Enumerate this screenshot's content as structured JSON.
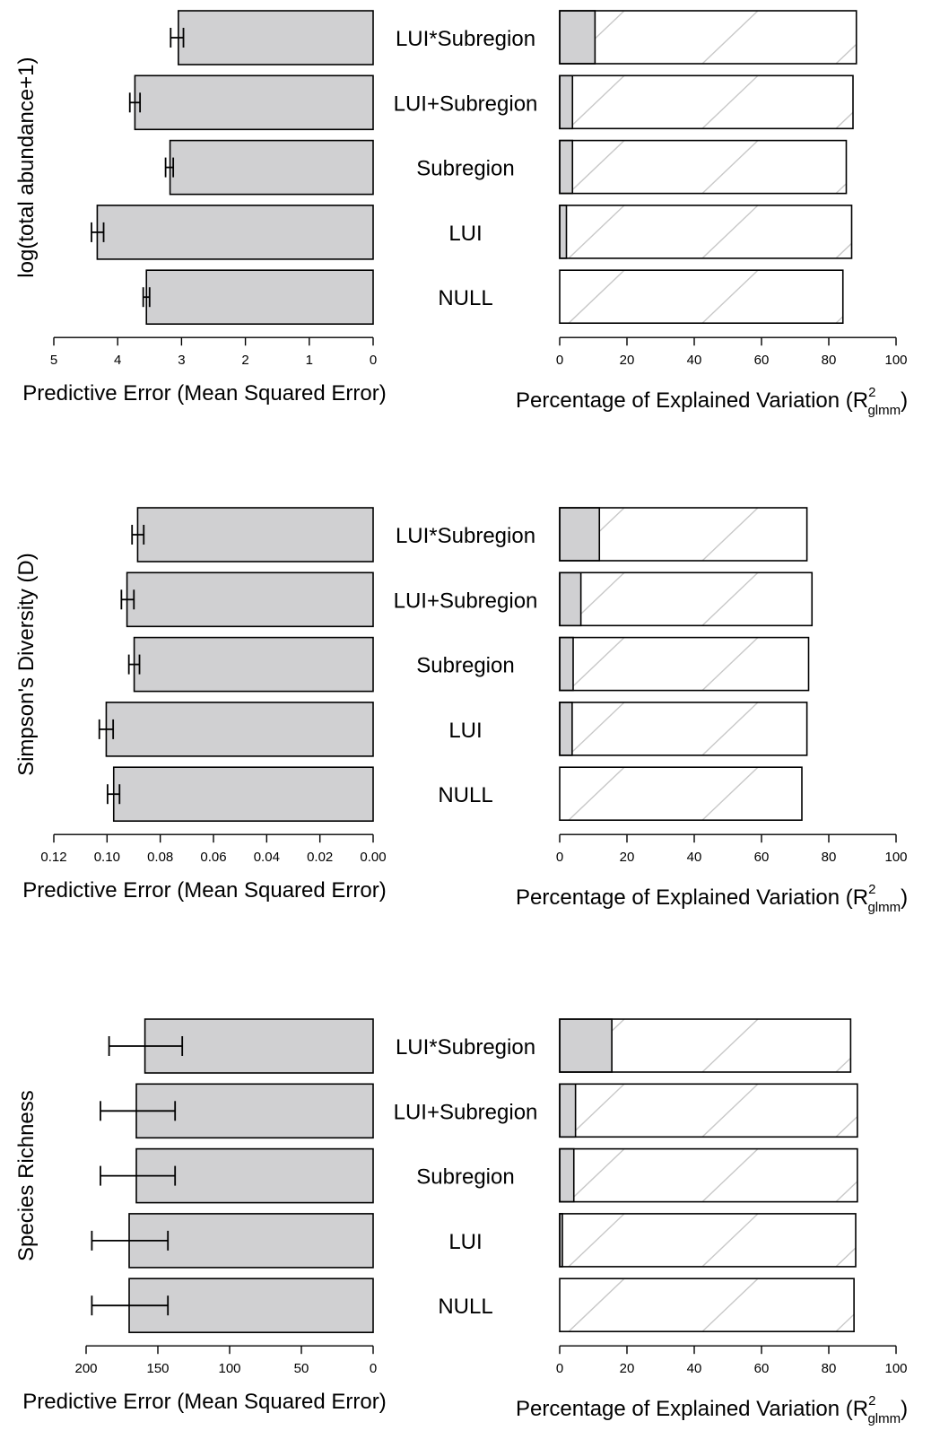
{
  "chart_data": [
    {
      "type": "bar",
      "ylabel": "log(total abundance+1)",
      "categories": [
        "LUI*Subregion",
        "LUI+Subregion",
        "Subregion",
        "LUI",
        "NULL"
      ],
      "error_panel": {
        "xlabel": "Predictive Error (Mean Squared Error)",
        "xlim": [
          5,
          0
        ],
        "ticks": [
          "5",
          "4",
          "3",
          "2",
          "1",
          "0"
        ],
        "tick_values": [
          5,
          4,
          3,
          2,
          1,
          0
        ],
        "values": [
          3.05,
          3.73,
          3.18,
          4.32,
          3.55
        ],
        "err_low": [
          2.97,
          3.65,
          3.13,
          4.22,
          3.5
        ],
        "err_high": [
          3.17,
          3.81,
          3.25,
          4.41,
          3.6
        ]
      },
      "r2_panel": {
        "xlabel": "Percentage of Explained Variation (R",
        "xlabel_sup": "2",
        "xlabel_sub": "glmm",
        "xlabel_end": ")",
        "xlim": [
          0,
          100
        ],
        "ticks": [
          "0",
          "20",
          "40",
          "60",
          "80",
          "100"
        ],
        "tick_values": [
          0,
          20,
          40,
          60,
          80,
          100
        ],
        "conditional": [
          88.2,
          87.2,
          85.2,
          86.8,
          84.2
        ],
        "marginal": [
          10.5,
          3.8,
          3.8,
          2.0,
          0
        ]
      }
    },
    {
      "type": "bar",
      "ylabel": "Simpson's Diversity (D)",
      "categories": [
        "LUI*Subregion",
        "LUI+Subregion",
        "Subregion",
        "LUI",
        "NULL"
      ],
      "error_panel": {
        "xlabel": "Predictive Error (Mean Squared Error)",
        "xlim": [
          0.12,
          0.0
        ],
        "ticks": [
          "0.12",
          "0.10",
          "0.08",
          "0.06",
          "0.04",
          "0.02",
          "0.00"
        ],
        "tick_values": [
          0.12,
          0.1,
          0.08,
          0.06,
          0.04,
          0.02,
          0.0
        ],
        "values": [
          0.0885,
          0.0925,
          0.0898,
          0.1003,
          0.0975
        ],
        "err_low": [
          0.0862,
          0.0899,
          0.0878,
          0.0977,
          0.0953
        ],
        "err_high": [
          0.0906,
          0.0946,
          0.0918,
          0.1029,
          0.0998
        ]
      },
      "r2_panel": {
        "xlabel": "Percentage of Explained Variation (R",
        "xlabel_sup": "2",
        "xlabel_sub": "glmm",
        "xlabel_end": ")",
        "xlim": [
          0,
          100
        ],
        "ticks": [
          "0",
          "20",
          "40",
          "60",
          "80",
          "100"
        ],
        "tick_values": [
          0,
          20,
          40,
          60,
          80,
          100
        ],
        "conditional": [
          73.5,
          75.0,
          74.0,
          73.5,
          72.0
        ],
        "marginal": [
          11.8,
          6.3,
          4.0,
          3.7,
          0
        ]
      }
    },
    {
      "type": "bar",
      "ylabel": "Species Richness",
      "categories": [
        "LUI*Subregion",
        "LUI+Subregion",
        "Subregion",
        "LUI",
        "NULL"
      ],
      "error_panel": {
        "xlabel": "Predictive Error (Mean Squared Error)",
        "xlim": [
          200,
          0
        ],
        "ticks": [
          "200",
          "150",
          "100",
          "50",
          "0"
        ],
        "tick_values": [
          200,
          150,
          100,
          50,
          0
        ],
        "values": [
          159,
          165,
          165,
          170,
          170
        ],
        "err_low": [
          133,
          138,
          138,
          143,
          143
        ],
        "err_high": [
          184,
          190,
          190,
          196,
          196
        ]
      },
      "r2_panel": {
        "xlabel": "Percentage of Explained Variation (R",
        "xlabel_sup": "2",
        "xlabel_sub": "glmm",
        "xlabel_end": ")",
        "xlim": [
          0,
          100
        ],
        "ticks": [
          "0",
          "20",
          "40",
          "60",
          "80",
          "100"
        ],
        "tick_values": [
          0,
          20,
          40,
          60,
          80,
          100
        ],
        "conditional": [
          86.5,
          88.5,
          88.5,
          88.0,
          87.5
        ],
        "marginal": [
          15.5,
          4.7,
          4.2,
          0.8,
          0
        ]
      }
    }
  ]
}
